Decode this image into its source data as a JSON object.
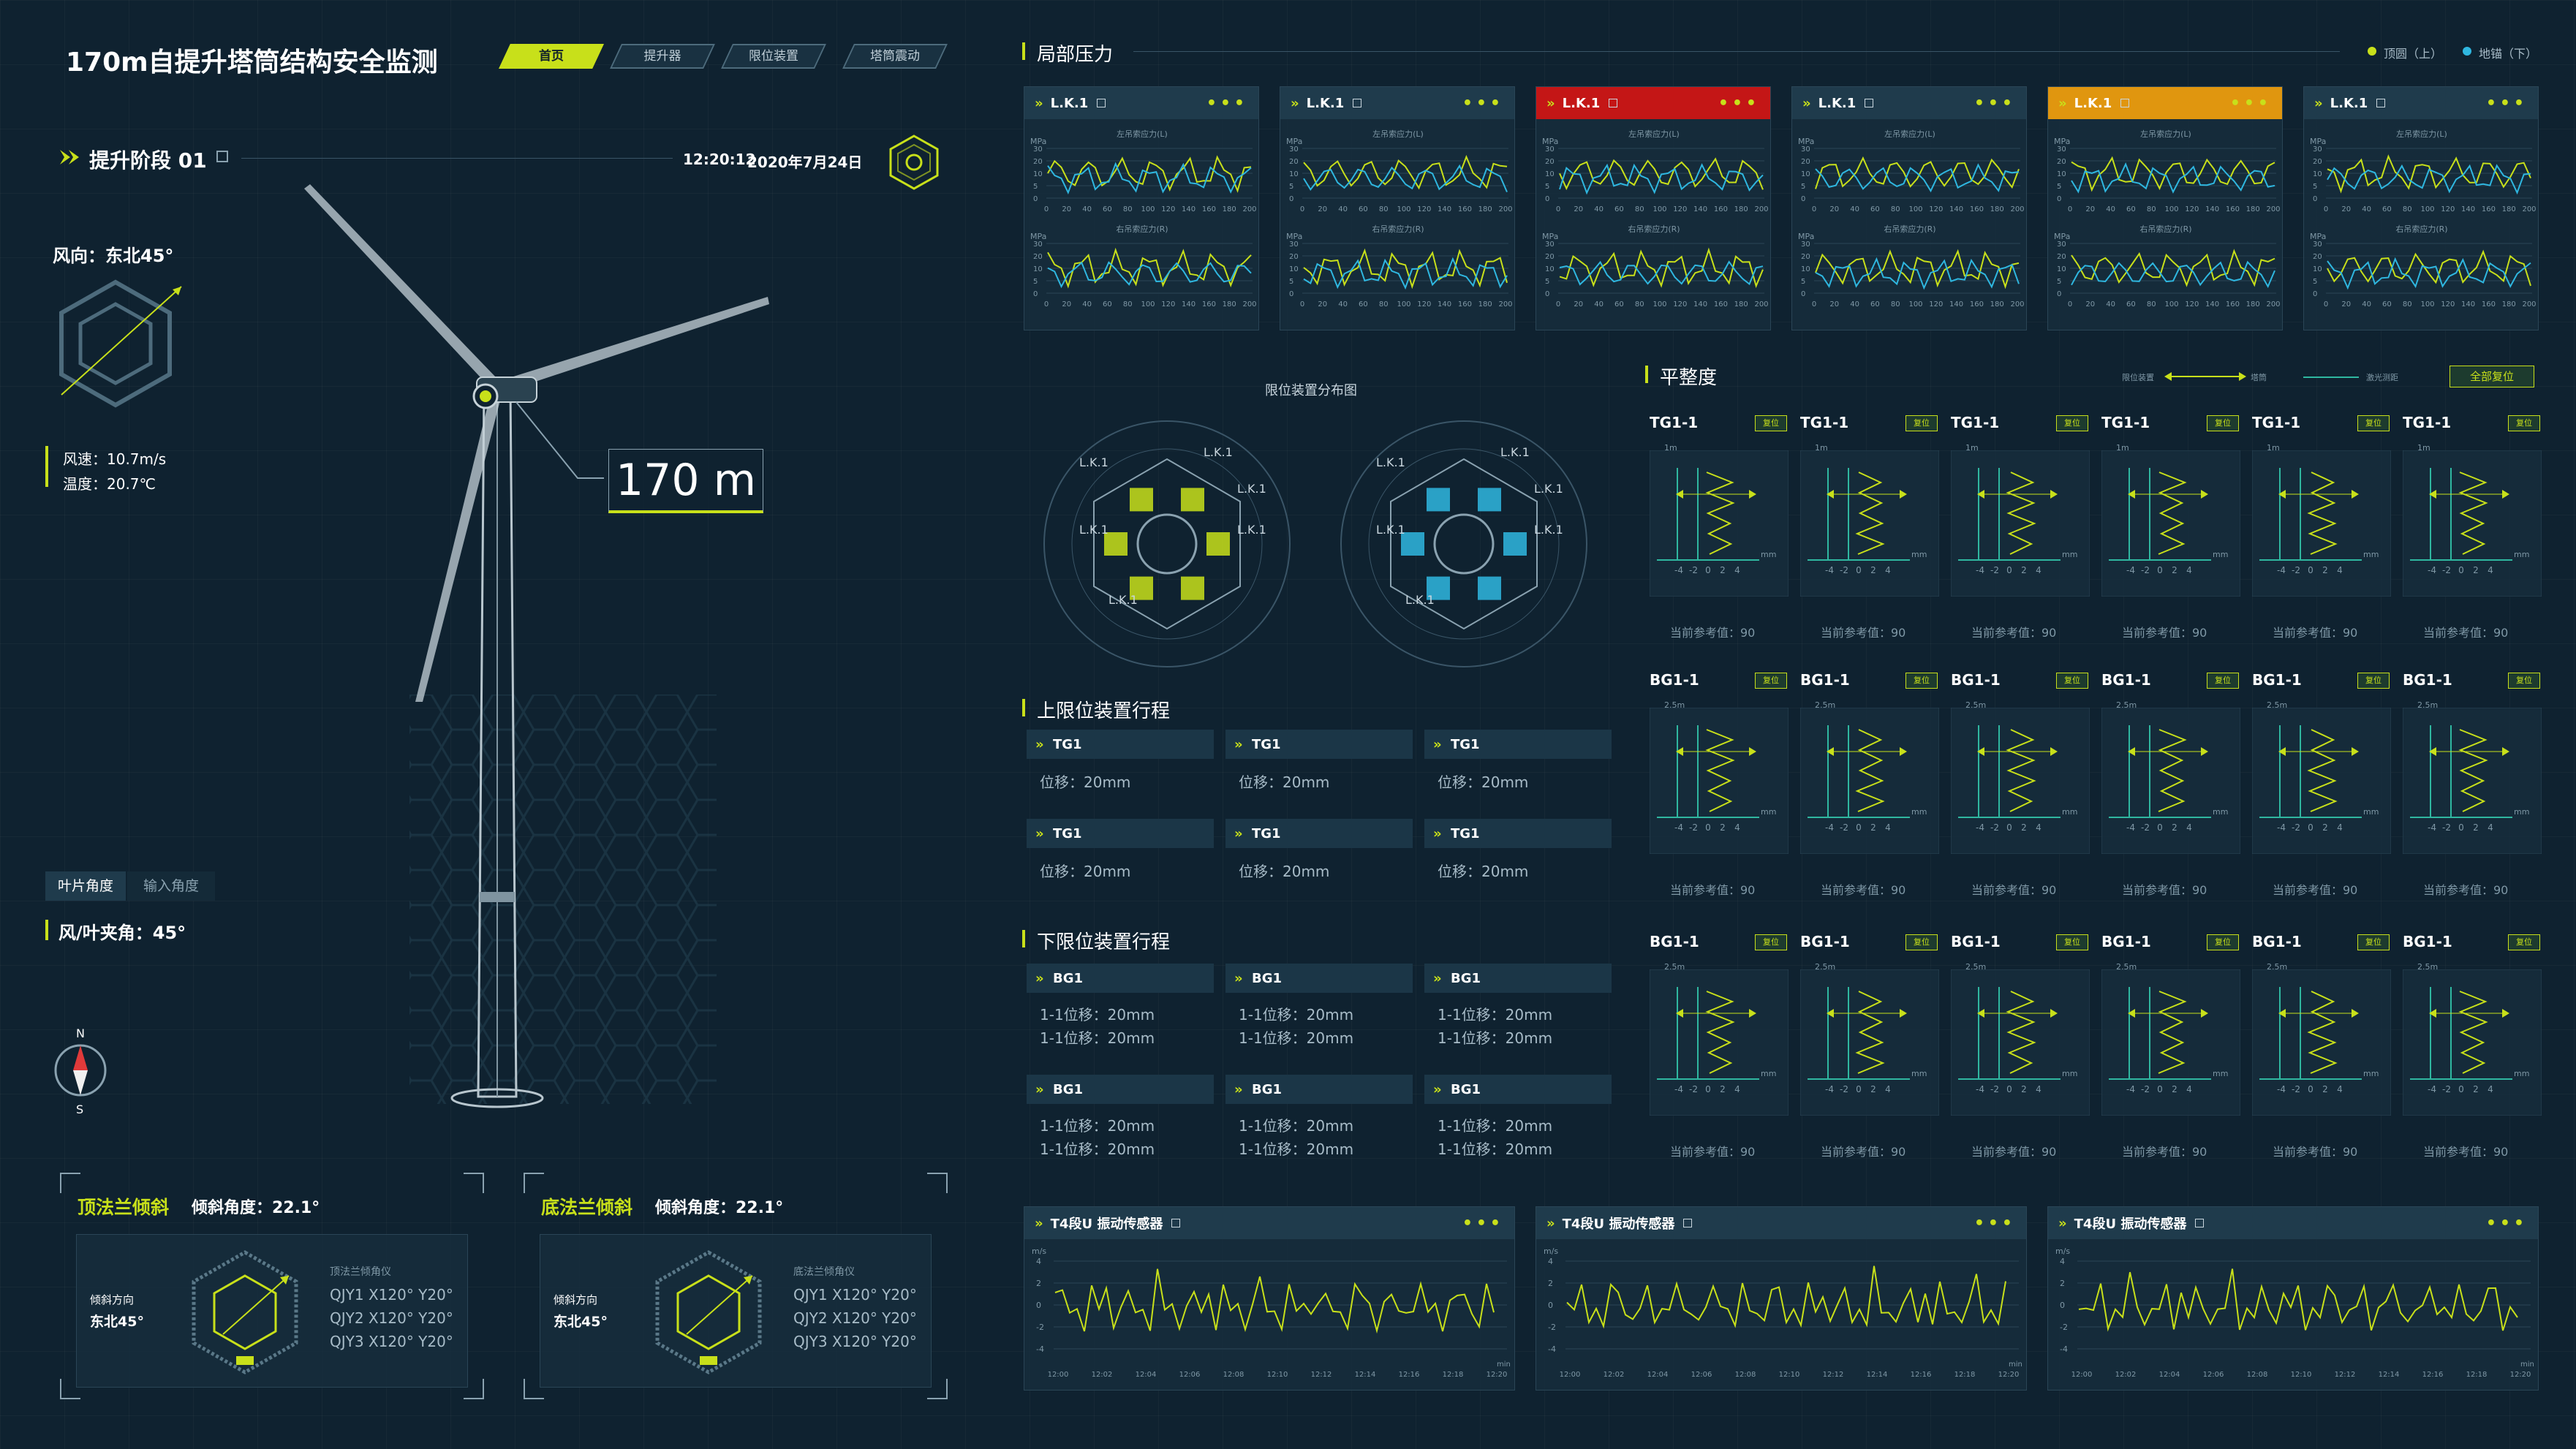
{
  "header": {
    "title": "170m自提升塔筒结构安全监测",
    "tabs": [
      {
        "label": "首页",
        "active": true
      },
      {
        "label": "提升器"
      },
      {
        "label": "限位装置"
      },
      {
        "label": "塔筒震动"
      }
    ]
  },
  "stage": {
    "label": "提升阶段 01",
    "time": "12:20:12",
    "date": "2020年7月24日"
  },
  "wind": {
    "direction": "风向：东北45°",
    "speed": "风速：10.7m/s",
    "temp": "温度：20.7℃"
  },
  "height": "170 m",
  "angle_tabs": [
    "叶片角度",
    "输入角度"
  ],
  "wind_blade_angle": "风/叶夹角：45°",
  "compass": {
    "n": "N",
    "s": "S"
  },
  "flange": [
    {
      "title": "顶法兰倾斜",
      "tilt": "倾斜角度：22.1°",
      "dir_label": "倾斜方向",
      "dir_value": "东北45°",
      "list_title": "顶法兰倾角仪",
      "items": [
        "QJY1 X120° Y20°",
        "QJY2 X120° Y20°",
        "QJY3 X120° Y20°"
      ]
    },
    {
      "title": "底法兰倾斜",
      "tilt": "倾斜角度：22.1°",
      "dir_label": "倾斜方向",
      "dir_value": "东北45°",
      "list_title": "底法兰倾角仪",
      "items": [
        "QJY1 X120° Y20°",
        "QJY2 X120° Y20°",
        "QJY3 X120° Y20°"
      ]
    }
  ],
  "pressure": {
    "title": "局部压力",
    "legend": [
      "顶圆（上）",
      "地锚（下）"
    ],
    "panels": [
      {
        "name": "L.K.1",
        "status": "normal"
      },
      {
        "name": "L.K.1",
        "status": "normal"
      },
      {
        "name": "L.K.1",
        "status": "alarm"
      },
      {
        "name": "L.K.1",
        "status": "normal"
      },
      {
        "name": "L.K.1",
        "status": "warn"
      },
      {
        "name": "L.K.1",
        "status": "normal"
      }
    ],
    "chart_top": "左吊索应力(L)",
    "chart_bottom": "右吊索应力(R)",
    "unit": "MPa",
    "yticks": [
      "30",
      "20",
      "10",
      "5",
      "0"
    ],
    "xticks": [
      "0",
      "20",
      "40",
      "60",
      "80",
      "100",
      "120",
      "140",
      "160",
      "180",
      "200"
    ]
  },
  "limit": {
    "title": "限位装置分布图",
    "node": "L.K.1"
  },
  "upper": {
    "title": "上限位装置行程",
    "cards": [
      {
        "name": "TG1",
        "value": "位移：20mm"
      },
      {
        "name": "TG1",
        "value": "位移：20mm"
      },
      {
        "name": "TG1",
        "value": "位移：20mm"
      },
      {
        "name": "TG1",
        "value": "位移：20mm"
      },
      {
        "name": "TG1",
        "value": "位移：20mm"
      },
      {
        "name": "TG1",
        "value": "位移：20mm"
      }
    ]
  },
  "lower": {
    "title": "下限位装置行程",
    "cards": [
      {
        "name": "BG1",
        "v1": "1-1位移：20mm",
        "v2": "1-1位移：20mm"
      },
      {
        "name": "BG1",
        "v1": "1-1位移：20mm",
        "v2": "1-1位移：20mm"
      },
      {
        "name": "BG1",
        "v1": "1-1位移：20mm",
        "v2": "1-1位移：20mm"
      },
      {
        "name": "BG1",
        "v1": "1-1位移：20mm",
        "v2": "1-1位移：20mm"
      },
      {
        "name": "BG1",
        "v1": "1-1位移：20mm",
        "v2": "1-1位移：20mm"
      },
      {
        "name": "BG1",
        "v1": "1-1位移：20mm",
        "v2": "1-1位移：20mm"
      }
    ]
  },
  "level": {
    "title": "平整度",
    "legend": [
      "限位装置",
      "塔筒",
      "激光测距"
    ],
    "reset_all": "全部复位",
    "reset": "复位",
    "ref": "当前参考值：90",
    "rows": [
      {
        "name": "TG1-1",
        "scale": "1m"
      },
      {
        "name": "BG1-1",
        "scale": "2.5m"
      },
      {
        "name": "BG1-1",
        "scale": "2.5m"
      }
    ],
    "unit": "mm",
    "xticks": [
      "-4",
      "-2",
      "0",
      "2",
      "4"
    ]
  },
  "vibration": {
    "title": "T4段U 振动传感器",
    "unit": "m/s",
    "yticks": [
      "4",
      "2",
      "0",
      "-2",
      "-4"
    ],
    "xticks": [
      "12:00",
      "12:02",
      "12:04",
      "12:06",
      "12:08",
      "12:10",
      "12:12",
      "12:14",
      "12:16",
      "12:18",
      "12:20"
    ],
    "axis_end": "min"
  },
  "colors": {
    "accent": "#c8e01a",
    "cyan": "#2fb7e0",
    "alarm": "#c41616",
    "warn": "#e0960f"
  }
}
